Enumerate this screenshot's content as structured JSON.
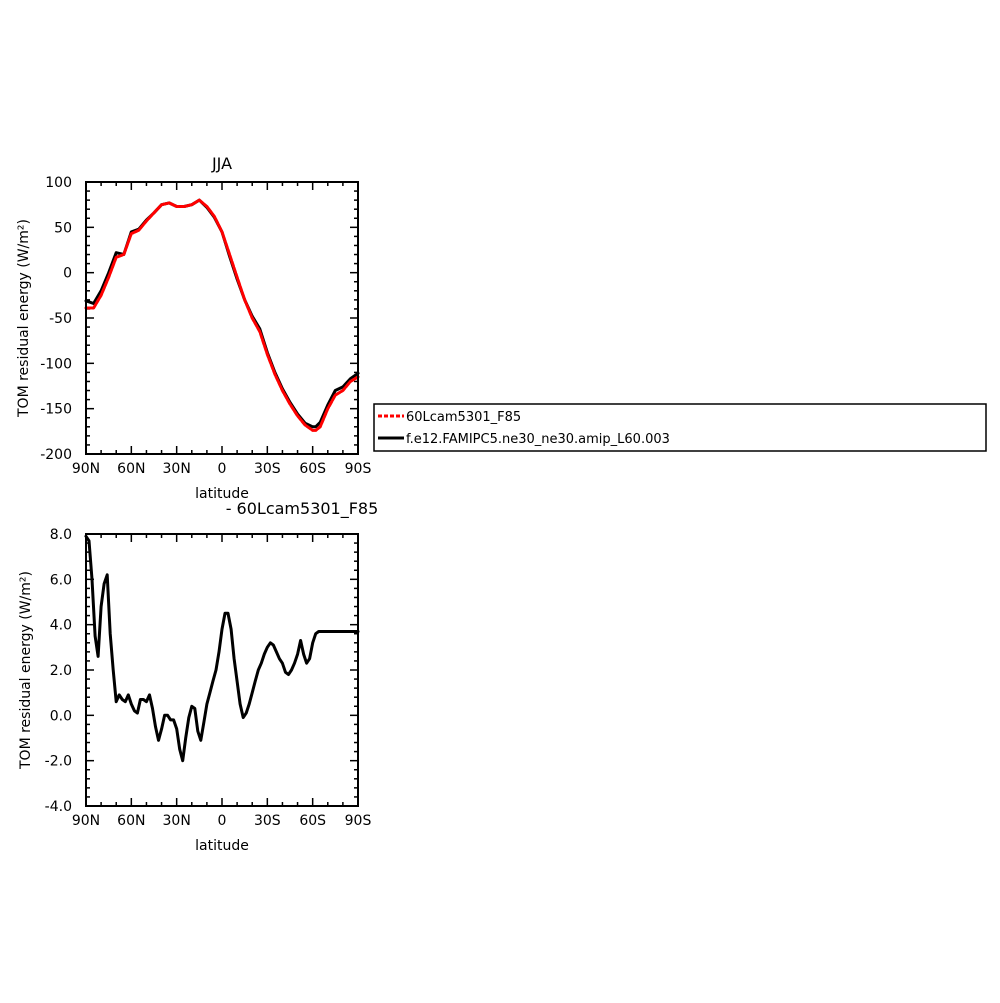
{
  "chart_data": [
    {
      "type": "line",
      "title": "JJA",
      "xlabel": "latitude",
      "ylabel": "TOM residual energy (W/m²)",
      "xlim": [
        90,
        -90
      ],
      "ylim": [
        -200,
        100
      ],
      "xtick_values": [
        90,
        60,
        30,
        0,
        -30,
        -60,
        -90
      ],
      "xtick_labels": [
        "90N",
        "60N",
        "30N",
        "0",
        "30S",
        "60S",
        "90S"
      ],
      "ytick_values": [
        100,
        50,
        0,
        -50,
        -100,
        -150,
        -200
      ],
      "ytick_labels": [
        "100",
        "50",
        "0",
        "-50",
        "-100",
        "-150",
        "-200"
      ],
      "x": [
        90,
        85,
        80,
        75,
        70,
        65,
        60,
        55,
        50,
        45,
        40,
        35,
        30,
        25,
        20,
        15,
        10,
        5,
        0,
        -5,
        -10,
        -15,
        -20,
        -25,
        -30,
        -35,
        -40,
        -45,
        -50,
        -55,
        -60,
        -62,
        -65,
        -70,
        -75,
        -80,
        -85,
        -90
      ],
      "series": [
        {
          "name": "60Lcam5301_F85",
          "color": "#ff0000",
          "dashed": true,
          "values": [
            -39,
            -39,
            -25,
            -5,
            17,
            20,
            43,
            47,
            57,
            66,
            75,
            77,
            73,
            73,
            75,
            80,
            73,
            62,
            45,
            20,
            -5,
            -30,
            -50,
            -65,
            -90,
            -112,
            -130,
            -145,
            -158,
            -168,
            -174,
            -174,
            -170,
            -150,
            -135,
            -130,
            -120,
            -115
          ]
        },
        {
          "name": "f.e12.FAMIPC5.ne30_ne30.amip_L60.003",
          "color": "#000000",
          "dashed": false,
          "values": [
            -31,
            -34,
            -20,
            0,
            22,
            20,
            45,
            48,
            58,
            66,
            75,
            77,
            73,
            73,
            75,
            80,
            72,
            61,
            45,
            18,
            -7,
            -30,
            -48,
            -62,
            -88,
            -110,
            -128,
            -143,
            -156,
            -166,
            -170,
            -170,
            -165,
            -146,
            -130,
            -126,
            -117,
            -111
          ]
        }
      ]
    },
    {
      "type": "line",
      "title": "- 60Lcam5301_F85",
      "xlabel": "latitude",
      "ylabel": "TOM residual energy (W/m²)",
      "xlim": [
        90,
        -90
      ],
      "ylim": [
        -4,
        8
      ],
      "xtick_values": [
        90,
        60,
        30,
        0,
        -30,
        -60,
        -90
      ],
      "xtick_labels": [
        "90N",
        "60N",
        "30N",
        "0",
        "30S",
        "60S",
        "90S"
      ],
      "ytick_values": [
        8,
        6,
        4,
        2,
        0,
        -2,
        -4
      ],
      "ytick_labels": [
        "8.0",
        "6.0",
        "4.0",
        "2.0",
        "0.0",
        "-2.0",
        "-4.0"
      ],
      "x": [
        90,
        88,
        86,
        84,
        82,
        80,
        78,
        76,
        74,
        72,
        70,
        68,
        66,
        64,
        62,
        60,
        58,
        56,
        54,
        52,
        50,
        48,
        46,
        44,
        42,
        40,
        38,
        36,
        34,
        32,
        30,
        28,
        26,
        24,
        22,
        20,
        18,
        16,
        14,
        12,
        10,
        8,
        6,
        4,
        2,
        0,
        -2,
        -4,
        -6,
        -8,
        -10,
        -12,
        -14,
        -16,
        -18,
        -20,
        -22,
        -24,
        -26,
        -28,
        -30,
        -32,
        -34,
        -36,
        -38,
        -40,
        -42,
        -44,
        -46,
        -48,
        -50,
        -52,
        -54,
        -56,
        -58,
        -60,
        -62,
        -64,
        -66,
        -68,
        -70,
        -72,
        -74,
        -76,
        -78,
        -80,
        -82,
        -84,
        -86,
        -88,
        -90
      ],
      "series": [
        {
          "name": "",
          "color": "#000000",
          "dashed": false,
          "values": [
            7.9,
            7.7,
            6.0,
            3.5,
            2.6,
            4.8,
            5.8,
            6.2,
            3.6,
            2.0,
            0.6,
            0.9,
            0.7,
            0.6,
            0.9,
            0.5,
            0.2,
            0.1,
            0.7,
            0.7,
            0.6,
            0.9,
            0.3,
            -0.5,
            -1.1,
            -0.6,
            0.0,
            0.0,
            -0.2,
            -0.2,
            -0.6,
            -1.5,
            -2.0,
            -1.0,
            -0.1,
            0.4,
            0.3,
            -0.7,
            -1.1,
            -0.3,
            0.5,
            1.0,
            1.5,
            2.0,
            2.8,
            3.8,
            4.5,
            4.5,
            3.8,
            2.5,
            1.5,
            0.5,
            -0.1,
            0.1,
            0.5,
            1.0,
            1.5,
            2.0,
            2.3,
            2.7,
            3.0,
            3.2,
            3.1,
            2.8,
            2.5,
            2.3,
            1.9,
            1.8,
            2.0,
            2.3,
            2.7,
            3.3,
            2.7,
            2.3,
            2.5,
            3.2,
            3.6,
            3.7,
            3.7,
            3.7,
            3.7,
            3.7,
            3.7,
            3.7,
            3.7,
            3.7,
            3.7,
            3.7,
            3.7,
            3.7,
            3.7
          ]
        }
      ]
    }
  ],
  "legend": {
    "placement": "right",
    "entries": [
      {
        "label": "60Lcam5301_F85",
        "color": "#ff0000",
        "dashed": true
      },
      {
        "label": "f.e12.FAMIPC5.ne30_ne30.amip_L60.003",
        "color": "#000000",
        "dashed": false
      }
    ]
  }
}
